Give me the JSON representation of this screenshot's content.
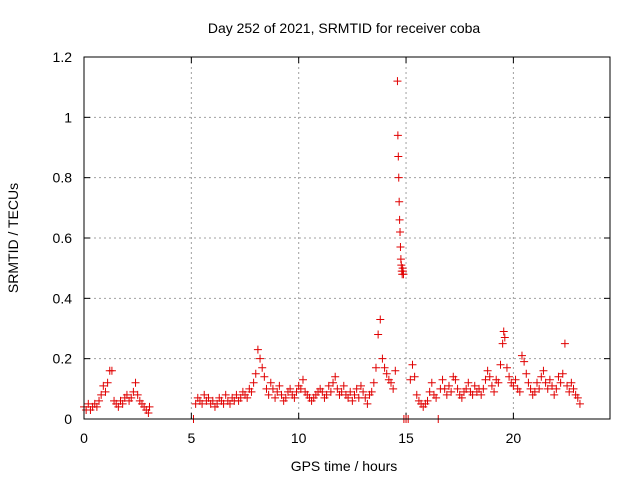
{
  "chart_data": {
    "type": "scatter",
    "title": "Day 252 of 2021, SRMTID for receiver coba",
    "xlabel": "GPS time / hours",
    "ylabel": "SRMTID / TECUs",
    "xlim": [
      0,
      24.5
    ],
    "ylim": [
      0,
      1.2
    ],
    "x_ticks": [
      0,
      5,
      10,
      15,
      20
    ],
    "x_tick_labels": [
      "0",
      "5",
      "10",
      "15",
      "20"
    ],
    "y_ticks": [
      0,
      0.2,
      0.4,
      0.6,
      0.8,
      1.0,
      1.2
    ],
    "y_tick_labels": [
      "0",
      "0.2",
      "0.4",
      "0.6",
      "0.8",
      "1",
      "1.2"
    ],
    "grid": true,
    "marker": "+",
    "series": [
      {
        "name": "SRMTID",
        "color": "#e00000",
        "points": [
          [
            0.0,
            0.04
          ],
          [
            0.1,
            0.03
          ],
          [
            0.2,
            0.05
          ],
          [
            0.3,
            0.03
          ],
          [
            0.4,
            0.04
          ],
          [
            0.5,
            0.05
          ],
          [
            0.6,
            0.04
          ],
          [
            0.7,
            0.06
          ],
          [
            0.8,
            0.08
          ],
          [
            0.9,
            0.11
          ],
          [
            1.0,
            0.09
          ],
          [
            1.1,
            0.12
          ],
          [
            1.2,
            0.16
          ],
          [
            1.3,
            0.16
          ],
          [
            1.4,
            0.06
          ],
          [
            1.5,
            0.05
          ],
          [
            1.6,
            0.04
          ],
          [
            1.7,
            0.06
          ],
          [
            1.8,
            0.05
          ],
          [
            1.9,
            0.07
          ],
          [
            2.0,
            0.08
          ],
          [
            2.1,
            0.06
          ],
          [
            2.2,
            0.07
          ],
          [
            2.3,
            0.09
          ],
          [
            2.4,
            0.12
          ],
          [
            2.5,
            0.08
          ],
          [
            2.6,
            0.06
          ],
          [
            2.7,
            0.05
          ],
          [
            2.8,
            0.04
          ],
          [
            2.9,
            0.03
          ],
          [
            3.0,
            0.02
          ],
          [
            3.05,
            0.04
          ],
          [
            5.1,
            0.0
          ],
          [
            5.2,
            0.05
          ],
          [
            5.3,
            0.07
          ],
          [
            5.4,
            0.06
          ],
          [
            5.5,
            0.05
          ],
          [
            5.6,
            0.08
          ],
          [
            5.7,
            0.06
          ],
          [
            5.8,
            0.07
          ],
          [
            5.9,
            0.05
          ],
          [
            6.0,
            0.06
          ],
          [
            6.1,
            0.04
          ],
          [
            6.2,
            0.05
          ],
          [
            6.3,
            0.07
          ],
          [
            6.4,
            0.06
          ],
          [
            6.5,
            0.05
          ],
          [
            6.6,
            0.08
          ],
          [
            6.7,
            0.06
          ],
          [
            6.8,
            0.05
          ],
          [
            6.9,
            0.07
          ],
          [
            7.0,
            0.06
          ],
          [
            7.1,
            0.08
          ],
          [
            7.2,
            0.06
          ],
          [
            7.3,
            0.07
          ],
          [
            7.4,
            0.09
          ],
          [
            7.5,
            0.08
          ],
          [
            7.6,
            0.07
          ],
          [
            7.7,
            0.1
          ],
          [
            7.8,
            0.09
          ],
          [
            7.9,
            0.12
          ],
          [
            8.0,
            0.15
          ],
          [
            8.1,
            0.23
          ],
          [
            8.2,
            0.2
          ],
          [
            8.3,
            0.17
          ],
          [
            8.4,
            0.14
          ],
          [
            8.5,
            0.1
          ],
          [
            8.6,
            0.08
          ],
          [
            8.7,
            0.12
          ],
          [
            8.8,
            0.1
          ],
          [
            8.9,
            0.07
          ],
          [
            9.0,
            0.09
          ],
          [
            9.1,
            0.11
          ],
          [
            9.2,
            0.08
          ],
          [
            9.3,
            0.06
          ],
          [
            9.4,
            0.07
          ],
          [
            9.5,
            0.09
          ],
          [
            9.6,
            0.1
          ],
          [
            9.7,
            0.08
          ],
          [
            9.8,
            0.07
          ],
          [
            9.9,
            0.09
          ],
          [
            10.0,
            0.11
          ],
          [
            10.1,
            0.1
          ],
          [
            10.2,
            0.13
          ],
          [
            10.3,
            0.09
          ],
          [
            10.4,
            0.08
          ],
          [
            10.5,
            0.07
          ],
          [
            10.6,
            0.06
          ],
          [
            10.7,
            0.07
          ],
          [
            10.8,
            0.08
          ],
          [
            10.9,
            0.09
          ],
          [
            11.0,
            0.1
          ],
          [
            11.1,
            0.09
          ],
          [
            11.2,
            0.07
          ],
          [
            11.3,
            0.08
          ],
          [
            11.4,
            0.11
          ],
          [
            11.5,
            0.09
          ],
          [
            11.6,
            0.12
          ],
          [
            11.7,
            0.14
          ],
          [
            11.8,
            0.1
          ],
          [
            11.9,
            0.08
          ],
          [
            12.0,
            0.09
          ],
          [
            12.1,
            0.11
          ],
          [
            12.2,
            0.08
          ],
          [
            12.3,
            0.07
          ],
          [
            12.4,
            0.09
          ],
          [
            12.5,
            0.06
          ],
          [
            12.6,
            0.08
          ],
          [
            12.7,
            0.1
          ],
          [
            12.8,
            0.07
          ],
          [
            12.9,
            0.11
          ],
          [
            13.0,
            0.09
          ],
          [
            13.1,
            0.07
          ],
          [
            13.2,
            0.05
          ],
          [
            13.3,
            0.08
          ],
          [
            13.4,
            0.09
          ],
          [
            13.5,
            0.12
          ],
          [
            13.6,
            0.17
          ],
          [
            13.7,
            0.28
          ],
          [
            13.8,
            0.33
          ],
          [
            13.9,
            0.2
          ],
          [
            14.0,
            0.17
          ],
          [
            14.1,
            0.15
          ],
          [
            14.2,
            0.13
          ],
          [
            14.3,
            0.12
          ],
          [
            14.4,
            0.1
          ],
          [
            14.5,
            0.16
          ],
          [
            14.6,
            1.12
          ],
          [
            14.62,
            0.94
          ],
          [
            14.64,
            0.87
          ],
          [
            14.66,
            0.8
          ],
          [
            14.68,
            0.72
          ],
          [
            14.7,
            0.66
          ],
          [
            14.72,
            0.62
          ],
          [
            14.74,
            0.57
          ],
          [
            14.76,
            0.53
          ],
          [
            14.78,
            0.51
          ],
          [
            14.8,
            0.49
          ],
          [
            14.82,
            0.48
          ],
          [
            14.84,
            0.5
          ],
          [
            14.86,
            0.49
          ],
          [
            14.88,
            0.48
          ],
          [
            14.9,
            0.0
          ],
          [
            15.0,
            0.0
          ],
          [
            15.1,
            0.0
          ],
          [
            15.2,
            0.13
          ],
          [
            15.3,
            0.18
          ],
          [
            15.4,
            0.14
          ],
          [
            15.5,
            0.08
          ],
          [
            15.6,
            0.06
          ],
          [
            15.7,
            0.05
          ],
          [
            15.8,
            0.04
          ],
          [
            15.9,
            0.05
          ],
          [
            16.0,
            0.06
          ],
          [
            16.1,
            0.09
          ],
          [
            16.2,
            0.12
          ],
          [
            16.3,
            0.08
          ],
          [
            16.4,
            0.07
          ],
          [
            16.5,
            0.0
          ],
          [
            16.6,
            0.1
          ],
          [
            16.7,
            0.13
          ],
          [
            16.8,
            0.1
          ],
          [
            16.9,
            0.08
          ],
          [
            17.0,
            0.11
          ],
          [
            17.1,
            0.09
          ],
          [
            17.2,
            0.14
          ],
          [
            17.3,
            0.13
          ],
          [
            17.4,
            0.1
          ],
          [
            17.5,
            0.08
          ],
          [
            17.6,
            0.07
          ],
          [
            17.7,
            0.09
          ],
          [
            17.8,
            0.1
          ],
          [
            17.9,
            0.12
          ],
          [
            18.0,
            0.09
          ],
          [
            18.1,
            0.08
          ],
          [
            18.2,
            0.11
          ],
          [
            18.3,
            0.09
          ],
          [
            18.4,
            0.1
          ],
          [
            18.5,
            0.08
          ],
          [
            18.6,
            0.1
          ],
          [
            18.7,
            0.13
          ],
          [
            18.8,
            0.16
          ],
          [
            18.9,
            0.14
          ],
          [
            19.0,
            0.11
          ],
          [
            19.1,
            0.09
          ],
          [
            19.2,
            0.13
          ],
          [
            19.3,
            0.12
          ],
          [
            19.4,
            0.18
          ],
          [
            19.5,
            0.25
          ],
          [
            19.55,
            0.29
          ],
          [
            19.6,
            0.27
          ],
          [
            19.7,
            0.17
          ],
          [
            19.8,
            0.14
          ],
          [
            19.9,
            0.12
          ],
          [
            20.0,
            0.11
          ],
          [
            20.1,
            0.13
          ],
          [
            20.2,
            0.1
          ],
          [
            20.3,
            0.09
          ],
          [
            20.4,
            0.21
          ],
          [
            20.5,
            0.19
          ],
          [
            20.6,
            0.15
          ],
          [
            20.7,
            0.12
          ],
          [
            20.8,
            0.1
          ],
          [
            20.9,
            0.08
          ],
          [
            21.0,
            0.09
          ],
          [
            21.1,
            0.12
          ],
          [
            21.2,
            0.1
          ],
          [
            21.3,
            0.14
          ],
          [
            21.4,
            0.16
          ],
          [
            21.5,
            0.12
          ],
          [
            21.6,
            0.1
          ],
          [
            21.7,
            0.13
          ],
          [
            21.8,
            0.11
          ],
          [
            21.9,
            0.08
          ],
          [
            22.0,
            0.1
          ],
          [
            22.1,
            0.14
          ],
          [
            22.2,
            0.12
          ],
          [
            22.3,
            0.15
          ],
          [
            22.4,
            0.25
          ],
          [
            22.5,
            0.11
          ],
          [
            22.6,
            0.09
          ],
          [
            22.7,
            0.12
          ],
          [
            22.8,
            0.1
          ],
          [
            22.9,
            0.08
          ],
          [
            23.0,
            0.07
          ],
          [
            23.1,
            0.05
          ]
        ]
      }
    ]
  }
}
